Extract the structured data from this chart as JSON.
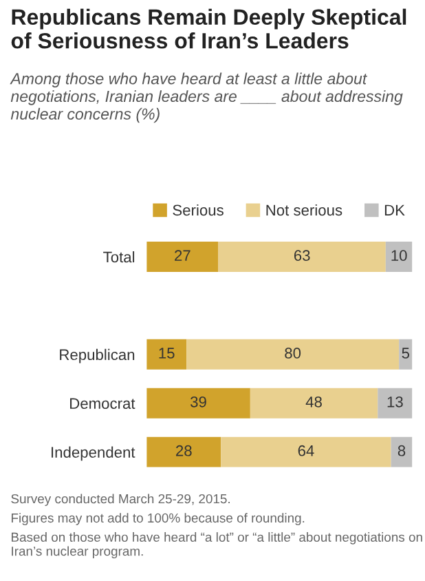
{
  "chart_data": {
    "type": "bar",
    "orientation": "horizontal",
    "stacked": true,
    "title": "Republicans Remain Deeply Skeptical of Seriousness of Iran’s Leaders",
    "subtitle": "Among those who have heard at least a little about negotiations, Iranian leaders are ____ about addressing nuclear concerns (%)",
    "categories": [
      "Total",
      null,
      "Republican",
      "Democrat",
      "Independent"
    ],
    "series": [
      {
        "name": "Serious",
        "color": "#d1a32c",
        "values": [
          27,
          null,
          15,
          39,
          28
        ]
      },
      {
        "name": "Not serious",
        "color": "#e9d08f",
        "values": [
          63,
          null,
          80,
          48,
          64
        ]
      },
      {
        "name": "DK",
        "color": "#c0c0c0",
        "values": [
          10,
          null,
          5,
          13,
          8
        ]
      }
    ],
    "data_labels": true,
    "legend": "top",
    "grid": false,
    "tick_labels": "y",
    "annotations": [
      "Survey conducted March 25-29, 2015.",
      "Figures may not add to 100% because of rounding.",
      "Based on those who have heard “a lot” or “a little” about negotiations on Iran’s nuclear program."
    ]
  }
}
